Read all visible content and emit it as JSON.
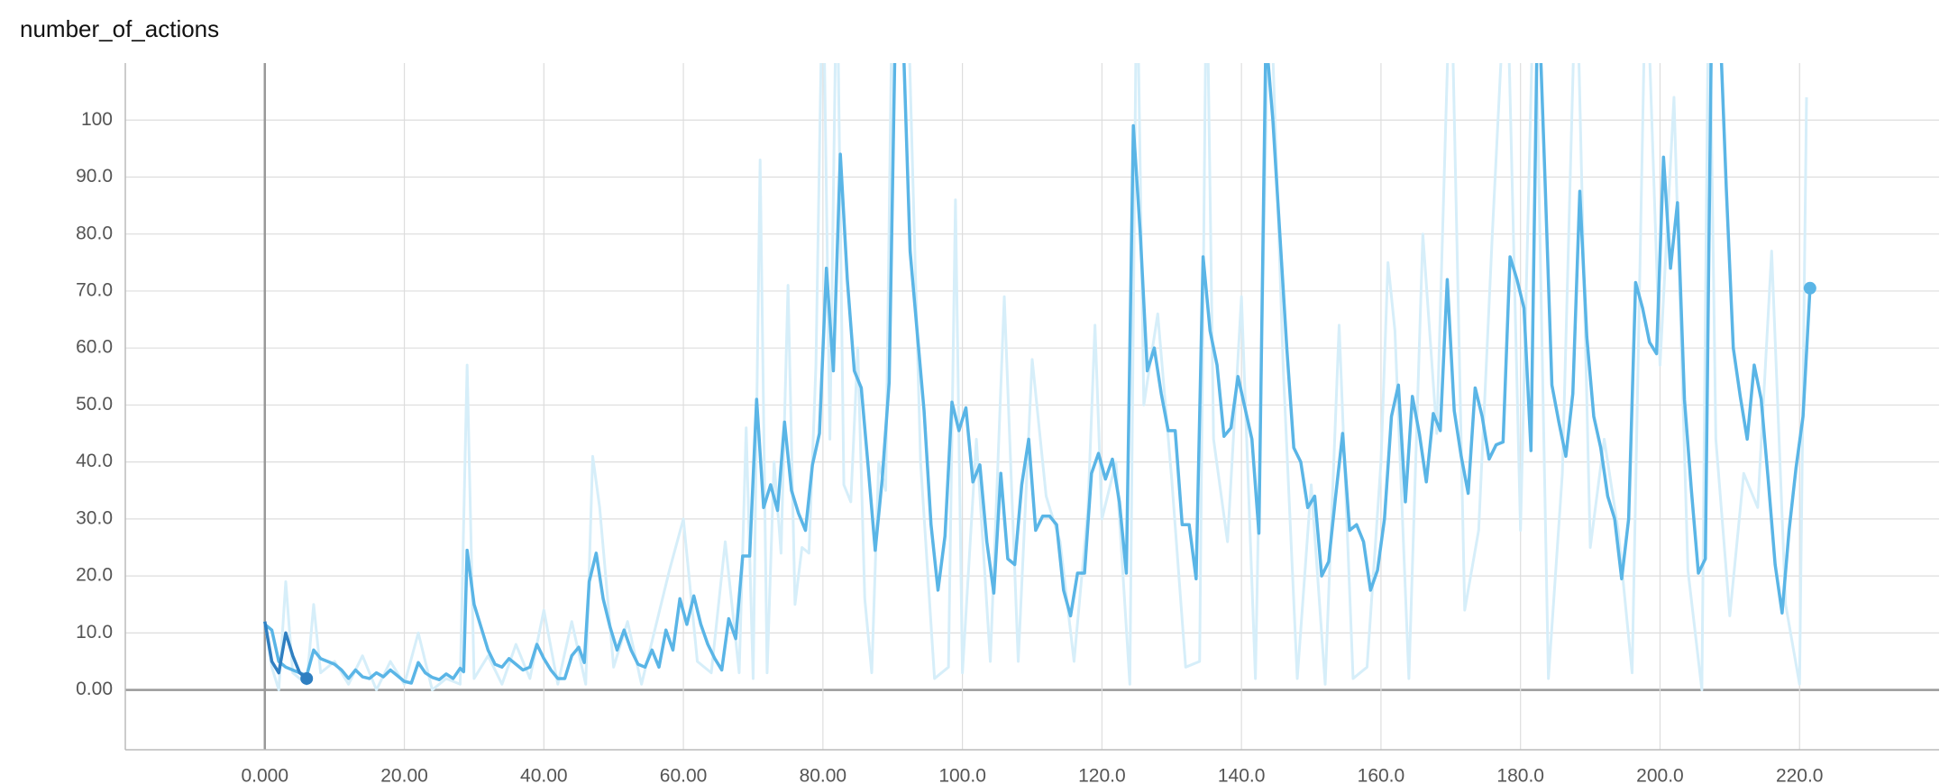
{
  "chart_data": {
    "type": "line",
    "title": "number_of_actions",
    "xlim": [
      -20,
      240
    ],
    "ylim": [
      -10.5,
      110
    ],
    "xticks": [
      {
        "value": 0,
        "label": "0.000"
      },
      {
        "value": 20,
        "label": "20.00"
      },
      {
        "value": 40,
        "label": "40.00"
      },
      {
        "value": 60,
        "label": "60.00"
      },
      {
        "value": 80,
        "label": "80.00"
      },
      {
        "value": 100,
        "label": "100.0"
      },
      {
        "value": 120,
        "label": "120.0"
      },
      {
        "value": 140,
        "label": "140.0"
      },
      {
        "value": 160,
        "label": "160.0"
      },
      {
        "value": 180,
        "label": "180.0"
      },
      {
        "value": 200,
        "label": "200.0"
      },
      {
        "value": 220,
        "label": "220.0"
      }
    ],
    "yticks": [
      {
        "value": 0,
        "label": "0.00"
      },
      {
        "value": 10,
        "label": "10.0"
      },
      {
        "value": 20,
        "label": "20.0"
      },
      {
        "value": 30,
        "label": "30.0"
      },
      {
        "value": 40,
        "label": "40.0"
      },
      {
        "value": 50,
        "label": "50.0"
      },
      {
        "value": 60,
        "label": "60.0"
      },
      {
        "value": 70,
        "label": "70.0"
      },
      {
        "value": 80,
        "label": "80.0"
      },
      {
        "value": 90,
        "label": "90.0"
      },
      100
    ],
    "grid": true,
    "series": [
      {
        "color": "#d6eef9",
        "x": [
          0,
          1,
          2,
          3,
          4,
          6,
          7,
          8,
          10,
          12,
          14,
          16,
          18,
          20,
          22,
          24,
          26,
          28,
          29,
          30,
          32,
          34,
          36,
          38,
          40,
          42,
          44,
          46,
          47,
          48,
          50,
          52,
          54,
          56,
          58,
          60,
          62,
          64,
          66,
          68,
          69,
          70,
          71,
          72,
          73,
          74,
          75,
          76,
          77,
          78,
          79,
          80,
          81,
          82,
          83,
          84,
          85,
          86,
          87,
          88,
          89,
          90,
          92,
          94,
          96,
          98,
          99,
          100,
          102,
          104,
          106,
          108,
          110,
          112,
          114,
          116,
          118,
          119,
          120,
          122,
          124,
          125,
          126,
          128,
          130,
          132,
          134,
          135,
          136,
          138,
          140,
          142,
          144,
          146,
          148,
          150,
          152,
          154,
          156,
          158,
          160,
          161,
          162,
          164,
          166,
          168,
          170,
          172,
          174,
          176,
          178,
          180,
          182,
          184,
          186,
          188,
          190,
          192,
          194,
          196,
          198,
          200,
          202,
          204,
          206,
          207,
          208,
          210,
          212,
          214,
          216,
          218,
          220,
          221
        ],
        "values": [
          12,
          4,
          0,
          19,
          3,
          1,
          15,
          3,
          5,
          1,
          6,
          0,
          5,
          1,
          10,
          0,
          2,
          1,
          57,
          2,
          6,
          1,
          8,
          2,
          14,
          1,
          12,
          1,
          41,
          32,
          4,
          12,
          1,
          11,
          21,
          30,
          5,
          3,
          26,
          3,
          46,
          2,
          93,
          3,
          40,
          24,
          71,
          15,
          25,
          24,
          57,
          130,
          44,
          130,
          36,
          33,
          60,
          16,
          3,
          40,
          35,
          130,
          130,
          40,
          2,
          4,
          86,
          3,
          44,
          5,
          69,
          5,
          58,
          34,
          26,
          5,
          32,
          64,
          30,
          40,
          1,
          130,
          50,
          66,
          37,
          4,
          5,
          130,
          44,
          26,
          69,
          2,
          130,
          56,
          2,
          36,
          1,
          64,
          2,
          4,
          40,
          75,
          63,
          2,
          80,
          45,
          130,
          14,
          28,
          81,
          130,
          28,
          130,
          2,
          38,
          130,
          25,
          44,
          28,
          3,
          130,
          57,
          104,
          21,
          0,
          130,
          44,
          13,
          38,
          32,
          77,
          15,
          1,
          104
        ]
      },
      {
        "color": "#5ab5e6",
        "marker": true,
        "x": [
          0,
          1,
          2,
          3,
          4,
          5,
          6,
          7,
          8,
          10,
          11,
          12,
          13,
          14,
          15,
          16,
          17,
          18,
          19,
          20,
          21,
          22,
          23,
          24,
          25,
          26,
          27,
          28,
          28.5,
          29,
          30,
          31,
          32,
          33,
          34,
          35,
          36,
          37,
          38,
          39,
          40,
          41,
          42,
          43,
          44,
          45,
          45.8,
          46.5,
          47.5,
          48.5,
          49.5,
          50.5,
          51.5,
          52.5,
          53.5,
          54.5,
          55.5,
          56.5,
          57.5,
          58.5,
          59.5,
          60.5,
          61.5,
          62.5,
          63.5,
          64.5,
          65.5,
          66.5,
          67.5,
          68.5,
          69.5,
          70.5,
          71.5,
          72.5,
          73.5,
          74.5,
          75.5,
          76.5,
          77.5,
          78.5,
          79.5,
          80.5,
          81.5,
          82.5,
          83.5,
          84.5,
          85.5,
          86.5,
          87.5,
          88.5,
          89.5,
          90.5,
          91.5,
          92.5,
          93.5,
          94.5,
          95.5,
          96.5,
          97.5,
          98.5,
          99.5,
          100.5,
          101.5,
          102.5,
          103.5,
          104.5,
          105.5,
          106.5,
          107.5,
          108.5,
          109.5,
          110.5,
          111.5,
          112.5,
          113.5,
          114.5,
          115.5,
          116.5,
          117.5,
          118.5,
          119.5,
          120.5,
          121.5,
          122.5,
          123.5,
          124.5,
          125.5,
          126.5,
          127.5,
          128.5,
          129.5,
          130.5,
          131.5,
          132.5,
          133.5,
          134.5,
          135.5,
          136.5,
          137.5,
          138.5,
          139.5,
          140.5,
          141.5,
          142.5,
          143.5,
          144.5,
          145.5,
          146.5,
          147.5,
          148.5,
          149.5,
          150.5,
          151.5,
          152.5,
          153.5,
          154.5,
          155.5,
          156.5,
          157.5,
          158.5,
          159.5,
          160.5,
          161.5,
          162.5,
          163.5,
          164.5,
          165.5,
          166.5,
          167.5,
          168.5,
          169.5,
          170.5,
          171.5,
          172.5,
          173.5,
          174.5,
          175.5,
          176.5,
          177.5,
          178.5,
          179.5,
          180.5,
          181.5,
          182.5,
          183.5,
          184.5,
          185.5,
          186.5,
          187.5,
          188.5,
          189.5,
          190.5,
          191.5,
          192.5,
          193.5,
          194.5,
          195.5,
          196.5,
          197.5,
          198.5,
          199.5,
          200.5,
          201.5,
          202.5,
          203.5,
          204.5,
          205.5,
          206.5,
          207.5,
          208.5,
          209.5,
          210.5,
          211.5,
          212.5,
          213.5,
          214.5,
          215.5,
          216.5,
          217.5,
          218.5,
          219.5,
          220.5,
          221.5
        ],
        "values": [
          11.5,
          10.5,
          5,
          4,
          3.5,
          3,
          2.5,
          7,
          5.5,
          4.5,
          3.5,
          2,
          3.5,
          2.3,
          2,
          3,
          2.3,
          3.5,
          2.5,
          1.5,
          1.2,
          4.8,
          3,
          2.2,
          1.8,
          2.8,
          2,
          3.8,
          3.2,
          24.5,
          15,
          11,
          7,
          4.5,
          4,
          5.5,
          4.5,
          3.5,
          4,
          8,
          5.5,
          3.5,
          2,
          2,
          6,
          7.5,
          4.8,
          19,
          24,
          16,
          11,
          7,
          10.5,
          7,
          4.5,
          4,
          7,
          4,
          10.5,
          7,
          16,
          11.5,
          16.5,
          11.5,
          8,
          5.5,
          3.5,
          12.5,
          9,
          23.5,
          23.5,
          51,
          32,
          36,
          31.5,
          47,
          35,
          31,
          28,
          39.5,
          45,
          74,
          56,
          94,
          72,
          56,
          53,
          39,
          24.5,
          37,
          54,
          125,
          115,
          77,
          63,
          49,
          29,
          17.5,
          27,
          50.5,
          45.5,
          49.5,
          36.5,
          39.5,
          26,
          17,
          38,
          23,
          22,
          36,
          44,
          28,
          30.5,
          30.5,
          29,
          17.5,
          13,
          20.5,
          20.5,
          38,
          41.5,
          37,
          40.5,
          33,
          20.5,
          99,
          80,
          56,
          60,
          52,
          45.5,
          45.5,
          29,
          29,
          19.5,
          76,
          63,
          57,
          44.5,
          46,
          55,
          49.5,
          44,
          27.5,
          115,
          100,
          80,
          60,
          42.5,
          40,
          32,
          34,
          20,
          22.5,
          34,
          45,
          28,
          29,
          26,
          17.5,
          21,
          30,
          48,
          53.5,
          33,
          51.5,
          45,
          36.5,
          48.5,
          45.5,
          72,
          49,
          41,
          34.5,
          53,
          48,
          40.5,
          43,
          43.5,
          76,
          72,
          67,
          42,
          125,
          90,
          53.5,
          47,
          41,
          52,
          87.5,
          62,
          48,
          42.5,
          34,
          30,
          19.5,
          30,
          71.5,
          67,
          61,
          59,
          93.5,
          74,
          85.5,
          51,
          35,
          20.5,
          23,
          130,
          120,
          88,
          60,
          51.5,
          44,
          57,
          51,
          37,
          22,
          13.5,
          28,
          39,
          48,
          70.5
        ]
      },
      {
        "color": "#2f7fc1",
        "marker": true,
        "x": [
          0,
          1,
          2,
          3,
          4,
          5,
          6
        ],
        "values": [
          12,
          5,
          3,
          10,
          6,
          3,
          2
        ]
      }
    ]
  }
}
